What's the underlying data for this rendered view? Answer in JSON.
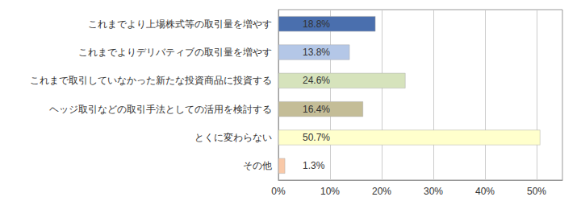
{
  "chart_data": {
    "type": "bar",
    "orientation": "horizontal",
    "categories": [
      "これまでより上場株式等の取引量を増やす",
      "これまでよりデリバティブの取引量を増やす",
      "これまで取引していなかった新たな投資商品に投資する",
      "ヘッジ取引などの取引手法としての活用を検討する",
      "とくに変わらない",
      "その他"
    ],
    "values": [
      18.8,
      13.8,
      24.6,
      16.4,
      50.7,
      1.3
    ],
    "value_labels": [
      "18.8%",
      "13.8%",
      "24.6%",
      "16.4%",
      "50.7%",
      "1.3%"
    ],
    "colors": [
      "#4a6fae",
      "#b4c7e7",
      "#d6e3bc",
      "#c4bd97",
      "#ffffcc",
      "#f9c9a8"
    ],
    "data_labels": true,
    "xlim": [
      0,
      55
    ],
    "xticks": [
      {
        "value": 0,
        "label": "0%"
      },
      {
        "value": 10,
        "label": "10%"
      },
      {
        "value": 20,
        "label": "20%"
      },
      {
        "value": 30,
        "label": "30%"
      },
      {
        "value": 40,
        "label": "40%"
      },
      {
        "value": 50,
        "label": "50%"
      }
    ],
    "grid": true
  }
}
